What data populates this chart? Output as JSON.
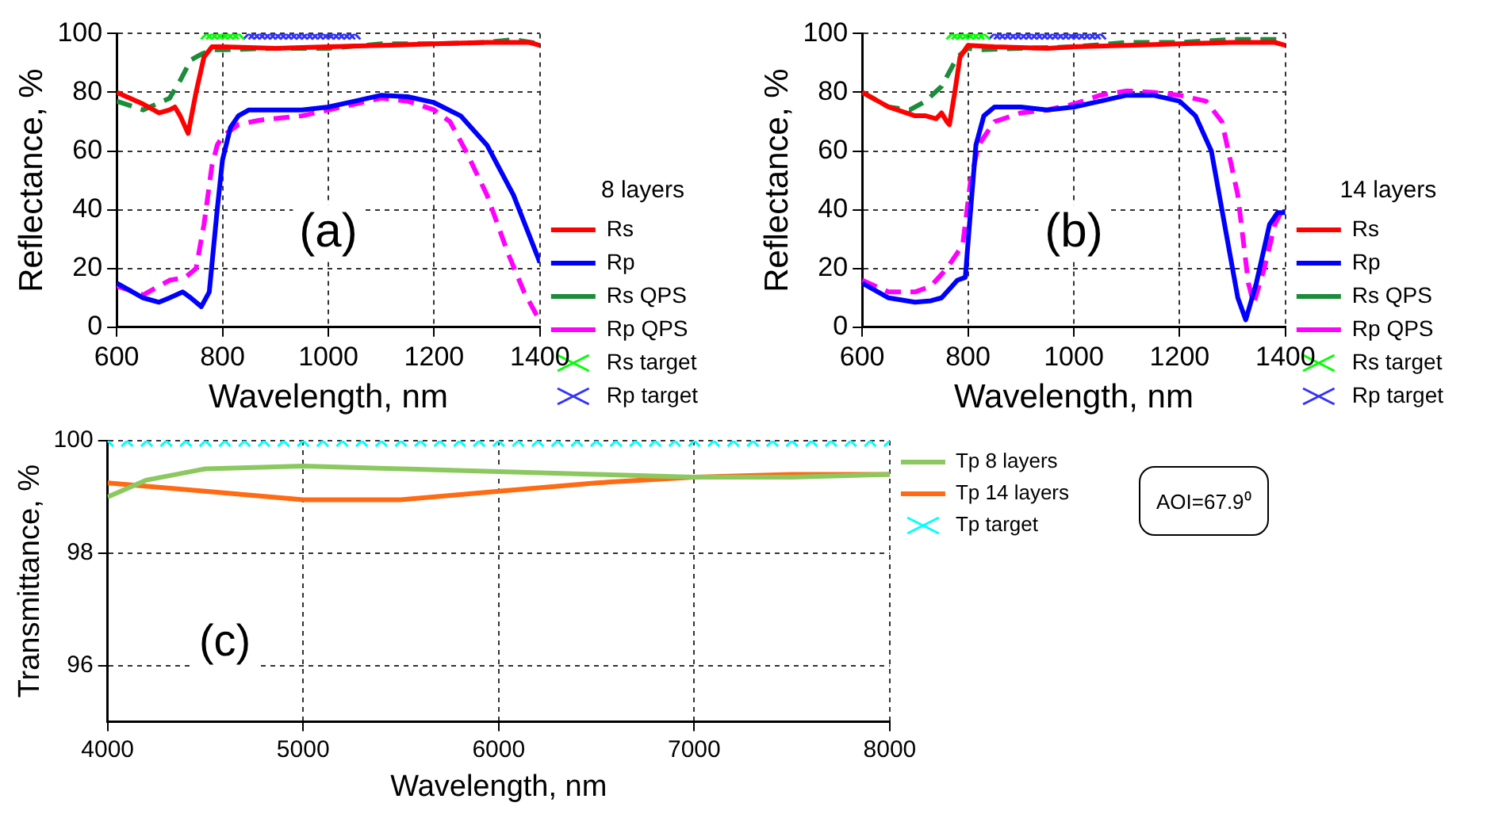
{
  "chart_data": [
    {
      "type": "line",
      "xlabel": "Wavelength, nm",
      "ylabel": "Reflectance, %",
      "legend_title": "8 layers",
      "legend": "bottom right",
      "grid": true,
      "xlim": [
        600,
        1400
      ],
      "xticks": [
        600,
        800,
        1000,
        1200,
        1400
      ],
      "ylim": [
        0,
        100
      ],
      "yticks": [
        0,
        20,
        40,
        60,
        80,
        100
      ],
      "annotations": [
        "(a)"
      ],
      "series": [
        {
          "name": "Rs",
          "color": "#ff0000",
          "line_style": "solid",
          "x": [
            600,
            650,
            680,
            700,
            710,
            720,
            735,
            750,
            765,
            780,
            800,
            900,
            1000,
            1100,
            1200,
            1300,
            1380,
            1400
          ],
          "values": [
            80,
            76,
            73,
            74,
            75,
            72,
            66,
            80,
            92,
            95.5,
            95.5,
            95,
            95.5,
            96,
            96.5,
            97,
            97,
            96
          ]
        },
        {
          "name": "Rp",
          "color": "#0000ff",
          "line_style": "solid",
          "x": [
            600,
            650,
            680,
            700,
            725,
            740,
            760,
            775,
            790,
            800,
            815,
            830,
            850,
            900,
            950,
            1000,
            1050,
            1100,
            1150,
            1200,
            1250,
            1300,
            1350,
            1400
          ],
          "values": [
            15,
            10,
            8.5,
            10,
            12,
            10,
            7,
            12,
            40,
            57,
            68,
            72,
            74,
            74,
            74,
            75,
            77,
            79,
            78.5,
            76.5,
            72,
            62,
            45,
            22
          ]
        },
        {
          "name": "Rs QPS",
          "color": "#1a8c3a",
          "line_style": "dashed",
          "x": [
            600,
            650,
            700,
            720,
            740,
            760,
            780,
            800,
            900,
            1000,
            1100,
            1200,
            1300,
            1350,
            1400
          ],
          "values": [
            77,
            74,
            78,
            84,
            91,
            93,
            94.5,
            94.5,
            95,
            95,
            96.5,
            96.5,
            97,
            98,
            96.5
          ]
        },
        {
          "name": "Rp QPS",
          "color": "#ff00ff",
          "line_style": "dashed",
          "x": [
            600,
            650,
            700,
            730,
            750,
            765,
            780,
            790,
            800,
            830,
            870,
            950,
            1000,
            1050,
            1100,
            1150,
            1200,
            1230,
            1260,
            1300,
            1340,
            1370,
            1400
          ],
          "values": [
            14,
            11,
            16,
            17,
            20,
            35,
            55,
            62,
            65,
            69,
            70.5,
            72,
            74,
            76,
            78,
            77,
            74,
            70,
            60,
            45,
            25,
            12,
            2
          ]
        },
        {
          "name": "Rs target",
          "type": "scatter",
          "marker": "cross",
          "color": "#00ff00",
          "x": [
            770,
            780,
            790,
            800,
            810,
            820,
            830
          ],
          "values": [
            100,
            100,
            100,
            100,
            100,
            100,
            100
          ]
        },
        {
          "name": "Rp target",
          "type": "scatter",
          "marker": "cross",
          "color": "#3333ff",
          "x": [
            850,
            860,
            870,
            880,
            890,
            900,
            910,
            920,
            930,
            940,
            950,
            960,
            970,
            980,
            990,
            1000,
            1010,
            1020,
            1030,
            1040,
            1050
          ],
          "values": [
            100,
            100,
            100,
            100,
            100,
            100,
            100,
            100,
            100,
            100,
            100,
            100,
            100,
            100,
            100,
            100,
            100,
            100,
            100,
            100,
            100
          ]
        }
      ]
    },
    {
      "type": "line",
      "xlabel": "Wavelength, nm",
      "ylabel": "Reflectance, %",
      "legend_title": "14 layers",
      "legend": "bottom right",
      "grid": true,
      "xlim": [
        600,
        1400
      ],
      "xticks": [
        600,
        800,
        1000,
        1200,
        1400
      ],
      "ylim": [
        0,
        100
      ],
      "yticks": [
        0,
        20,
        40,
        60,
        80,
        100
      ],
      "annotations": [
        "(b)"
      ],
      "series": [
        {
          "name": "Rs",
          "color": "#ff0000",
          "line_style": "solid",
          "x": [
            600,
            650,
            700,
            720,
            740,
            750,
            760,
            765,
            775,
            785,
            800,
            850,
            950,
            1000,
            1100,
            1200,
            1300,
            1380,
            1400
          ],
          "values": [
            80,
            75,
            72,
            72,
            71,
            73,
            70,
            69,
            80,
            92,
            96,
            95.5,
            95,
            95.5,
            96,
            96.5,
            97,
            97,
            96
          ]
        },
        {
          "name": "Rp",
          "color": "#0000ff",
          "line_style": "solid",
          "x": [
            600,
            650,
            700,
            730,
            750,
            770,
            780,
            795,
            805,
            815,
            830,
            850,
            900,
            950,
            1000,
            1050,
            1100,
            1150,
            1200,
            1230,
            1260,
            1290,
            1310,
            1325,
            1345,
            1370,
            1385,
            1400
          ],
          "values": [
            15,
            10,
            8.5,
            9,
            10,
            14,
            16,
            17,
            40,
            62,
            72,
            75,
            75,
            74,
            75,
            77,
            79,
            79,
            77,
            72,
            60,
            30,
            10,
            2.5,
            15,
            35,
            39,
            39
          ]
        },
        {
          "name": "Rs QPS",
          "color": "#1a8c3a",
          "line_style": "dashed",
          "x": [
            600,
            650,
            690,
            720,
            750,
            780,
            800,
            820,
            900,
            1000,
            1100,
            1200,
            1300,
            1400
          ],
          "values": [
            80,
            75,
            74,
            77,
            82,
            92,
            95,
            94.5,
            95,
            95.5,
            97,
            97,
            98,
            98
          ]
        },
        {
          "name": "Rp QPS",
          "color": "#ff00ff",
          "line_style": "dashed",
          "x": [
            600,
            650,
            700,
            730,
            760,
            790,
            805,
            820,
            850,
            900,
            950,
            1000,
            1050,
            1100,
            1150,
            1200,
            1250,
            1280,
            1310,
            1330,
            1340,
            1360,
            1380,
            1400
          ],
          "values": [
            16,
            12,
            12,
            14,
            20,
            28,
            50,
            62,
            70,
            73,
            74,
            76,
            79,
            80.5,
            80,
            79,
            77,
            70,
            45,
            15,
            8,
            20,
            35,
            42
          ]
        },
        {
          "name": "Rs target",
          "type": "scatter",
          "marker": "cross",
          "color": "#00ff00",
          "x": [
            770,
            780,
            790,
            800,
            810,
            820,
            830
          ],
          "values": [
            100,
            100,
            100,
            100,
            100,
            100,
            100
          ]
        },
        {
          "name": "Rp target",
          "type": "scatter",
          "marker": "cross",
          "color": "#3333ff",
          "x": [
            850,
            860,
            870,
            880,
            890,
            900,
            910,
            920,
            930,
            940,
            950,
            960,
            970,
            980,
            990,
            1000,
            1010,
            1020,
            1030,
            1040,
            1050
          ],
          "values": [
            100,
            100,
            100,
            100,
            100,
            100,
            100,
            100,
            100,
            100,
            100,
            100,
            100,
            100,
            100,
            100,
            100,
            100,
            100,
            100,
            100
          ]
        }
      ]
    },
    {
      "type": "line",
      "xlabel": "Wavelength, nm",
      "ylabel": "Transmittance, %",
      "legend": "right",
      "grid": true,
      "xlim": [
        4000,
        8000
      ],
      "xticks": [
        4000,
        5000,
        6000,
        7000,
        8000
      ],
      "ylim": [
        95,
        100
      ],
      "yticks": [
        96,
        98,
        100
      ],
      "annotations": [
        "(c)",
        "AOI=67.9⁰"
      ],
      "series": [
        {
          "name": "Tp 8 layers",
          "color": "#8cc860",
          "line_style": "solid",
          "x": [
            4000,
            4200,
            4500,
            5000,
            5500,
            6000,
            6500,
            7000,
            7500,
            8000
          ],
          "values": [
            99.0,
            99.3,
            99.5,
            99.55,
            99.5,
            99.45,
            99.4,
            99.35,
            99.35,
            99.4
          ]
        },
        {
          "name": "Tp 14 layers",
          "color": "#ff6a13",
          "line_style": "solid",
          "x": [
            4000,
            4500,
            5000,
            5500,
            6000,
            6500,
            7000,
            7500,
            8000
          ],
          "values": [
            99.25,
            99.1,
            98.95,
            98.95,
            99.1,
            99.25,
            99.35,
            99.4,
            99.4
          ]
        },
        {
          "name": "Tp target",
          "type": "scatter",
          "marker": "cross",
          "color": "#00ffff",
          "x": [
            4000,
            4100,
            4200,
            4300,
            4400,
            4500,
            4600,
            4700,
            4800,
            4900,
            5000,
            5100,
            5200,
            5300,
            5400,
            5500,
            5600,
            5700,
            5800,
            5900,
            6000,
            6100,
            6200,
            6300,
            6400,
            6500,
            6600,
            6700,
            6800,
            6900,
            7000,
            7100,
            7200,
            7300,
            7400,
            7500,
            7600,
            7700,
            7800,
            7900,
            8000
          ],
          "values": [
            100,
            100,
            100,
            100,
            100,
            100,
            100,
            100,
            100,
            100,
            100,
            100,
            100,
            100,
            100,
            100,
            100,
            100,
            100,
            100,
            100,
            100,
            100,
            100,
            100,
            100,
            100,
            100,
            100,
            100,
            100,
            100,
            100,
            100,
            100,
            100,
            100,
            100,
            100,
            100,
            100
          ]
        }
      ]
    }
  ]
}
